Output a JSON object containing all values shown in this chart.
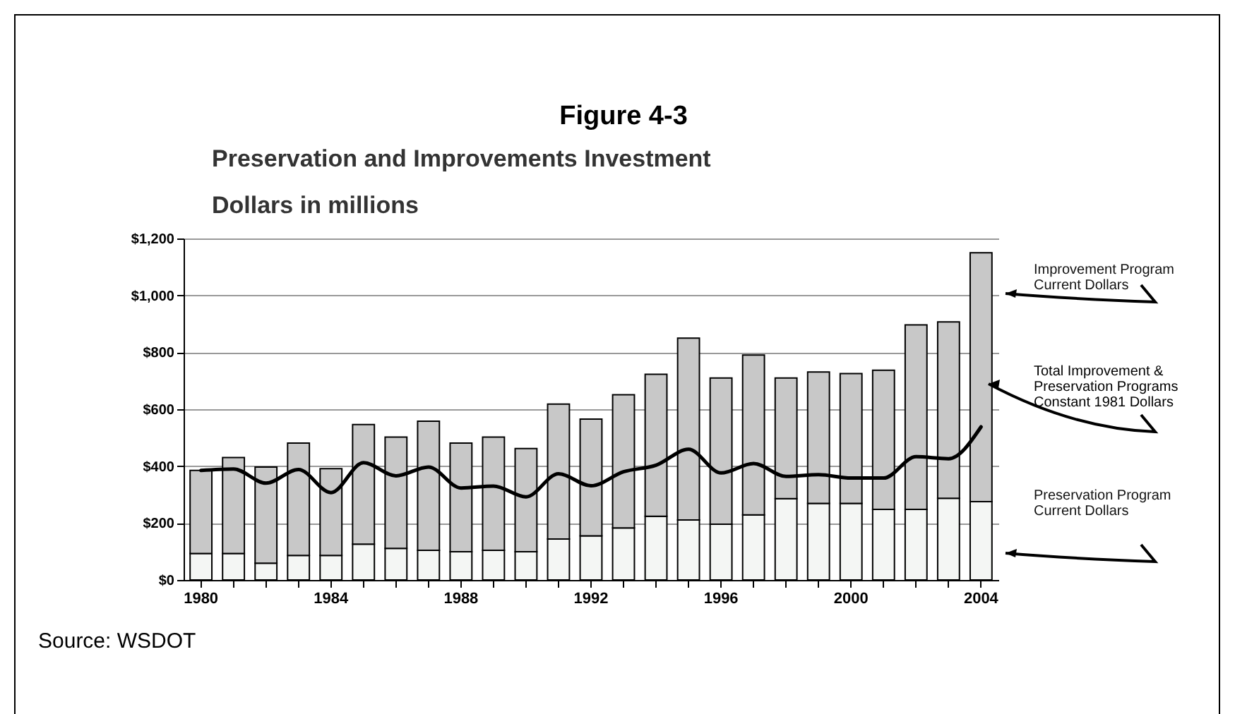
{
  "chart_data": {
    "type": "bar",
    "title": "Figure 4-3",
    "subtitle": "Preservation and Improvements Investment",
    "ylabel": "Dollars in millions",
    "categories": [
      "1980",
      null,
      null,
      null,
      "1984",
      null,
      null,
      null,
      "1988",
      null,
      null,
      null,
      "1992",
      null,
      null,
      null,
      "1996",
      null,
      null,
      null,
      "2000",
      null,
      null,
      null,
      "2004"
    ],
    "stacked": true,
    "series": [
      {
        "name": "Preservation Program Current Dollars",
        "color": "#f4f6f4",
        "values": [
          93,
          93,
          59,
          86,
          86,
          126,
          111,
          104,
          99,
          104,
          99,
          144,
          155,
          183,
          224,
          211,
          196,
          229,
          286,
          269,
          269,
          248,
          248,
          287,
          275
        ]
      },
      {
        "name": "Improvement Program Current Dollars",
        "color": "#c8c8c8",
        "values": [
          292,
          337,
          338,
          395,
          305,
          420,
          391,
          454,
          382,
          398,
          363,
          474,
          410,
          468,
          499,
          639,
          514,
          561,
          424,
          462,
          456,
          489,
          648,
          620,
          875
        ]
      },
      {
        "name": "Total Improvement & Preservation Programs Constant 1981 Dollars",
        "type": "line",
        "color": "#000000",
        "values": [
          385,
          390,
          340,
          388,
          307,
          412,
          366,
          397,
          323,
          330,
          292,
          373,
          331,
          380,
          403,
          459,
          376,
          409,
          364,
          370,
          358,
          358,
          433,
          426,
          538
        ]
      }
    ],
    "ylim": [
      0,
      1200
    ],
    "yticks": [
      {
        "value": 0,
        "label": "$0"
      },
      {
        "value": 200,
        "label": "$200"
      },
      {
        "value": 400,
        "label": "$400"
      },
      {
        "value": 600,
        "label": "$600"
      },
      {
        "value": 800,
        "label": "$800"
      },
      {
        "value": 1000,
        "label": "$1,000"
      },
      {
        "value": 1200,
        "label": "$1,200"
      }
    ],
    "grid": "y",
    "legend": "right",
    "annotations": [
      "Source: WSDOT"
    ]
  }
}
